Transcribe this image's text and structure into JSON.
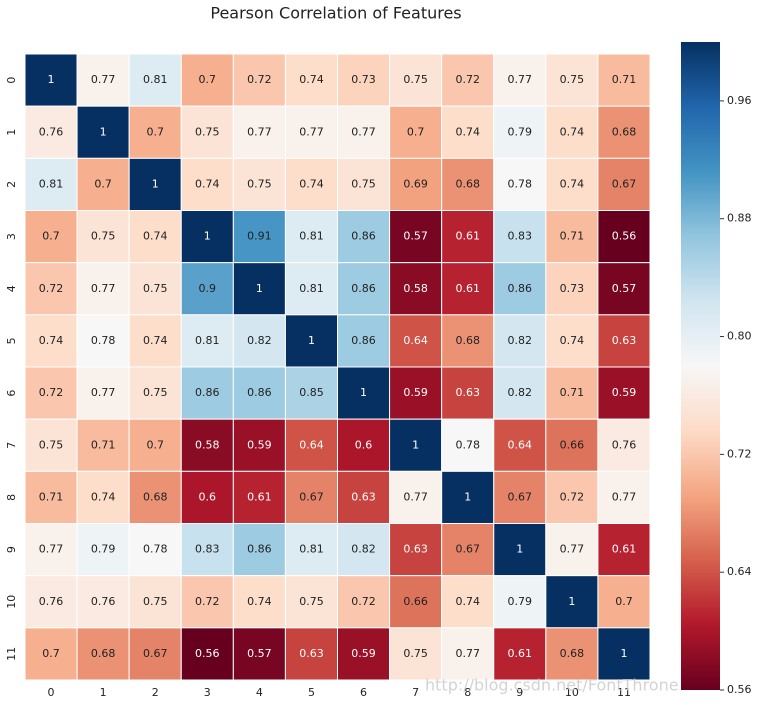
{
  "chart_data": {
    "type": "heatmap",
    "title": "Pearson Correlation of Features",
    "categories": [
      "0",
      "1",
      "2",
      "3",
      "4",
      "5",
      "6",
      "7",
      "8",
      "9",
      "10",
      "11"
    ],
    "values": [
      [
        1,
        0.77,
        0.81,
        0.7,
        0.72,
        0.74,
        0.73,
        0.75,
        0.72,
        0.77,
        0.75,
        0.71
      ],
      [
        0.76,
        1,
        0.7,
        0.75,
        0.77,
        0.77,
        0.77,
        0.7,
        0.74,
        0.79,
        0.74,
        0.68
      ],
      [
        0.81,
        0.7,
        1,
        0.74,
        0.75,
        0.74,
        0.75,
        0.69,
        0.68,
        0.78,
        0.74,
        0.67
      ],
      [
        0.7,
        0.75,
        0.74,
        1,
        0.91,
        0.81,
        0.86,
        0.57,
        0.61,
        0.83,
        0.71,
        0.56
      ],
      [
        0.72,
        0.77,
        0.75,
        0.9,
        1,
        0.81,
        0.86,
        0.58,
        0.61,
        0.86,
        0.73,
        0.57
      ],
      [
        0.74,
        0.78,
        0.74,
        0.81,
        0.82,
        1,
        0.86,
        0.64,
        0.68,
        0.82,
        0.74,
        0.63
      ],
      [
        0.72,
        0.77,
        0.75,
        0.86,
        0.86,
        0.85,
        1,
        0.59,
        0.63,
        0.82,
        0.71,
        0.59
      ],
      [
        0.75,
        0.71,
        0.7,
        0.58,
        0.59,
        0.64,
        0.6,
        1,
        0.78,
        0.64,
        0.66,
        0.76
      ],
      [
        0.71,
        0.74,
        0.68,
        0.6,
        0.61,
        0.67,
        0.63,
        0.77,
        1,
        0.67,
        0.72,
        0.77
      ],
      [
        0.77,
        0.79,
        0.78,
        0.83,
        0.86,
        0.81,
        0.82,
        0.63,
        0.67,
        1,
        0.77,
        0.61
      ],
      [
        0.76,
        0.76,
        0.75,
        0.72,
        0.74,
        0.75,
        0.72,
        0.66,
        0.74,
        0.79,
        1,
        0.7
      ],
      [
        0.7,
        0.68,
        0.67,
        0.56,
        0.57,
        0.63,
        0.59,
        0.75,
        0.77,
        0.61,
        0.68,
        1
      ]
    ],
    "colormap": "RdBu",
    "clim": [
      0.56,
      1.0
    ],
    "cticks": [
      0.56,
      0.64,
      0.72,
      {
        "value": 0.8,
        "label": "0.80"
      },
      0.88,
      0.96
    ],
    "watermark": "http://blog.csdn.net/FontThrone"
  }
}
